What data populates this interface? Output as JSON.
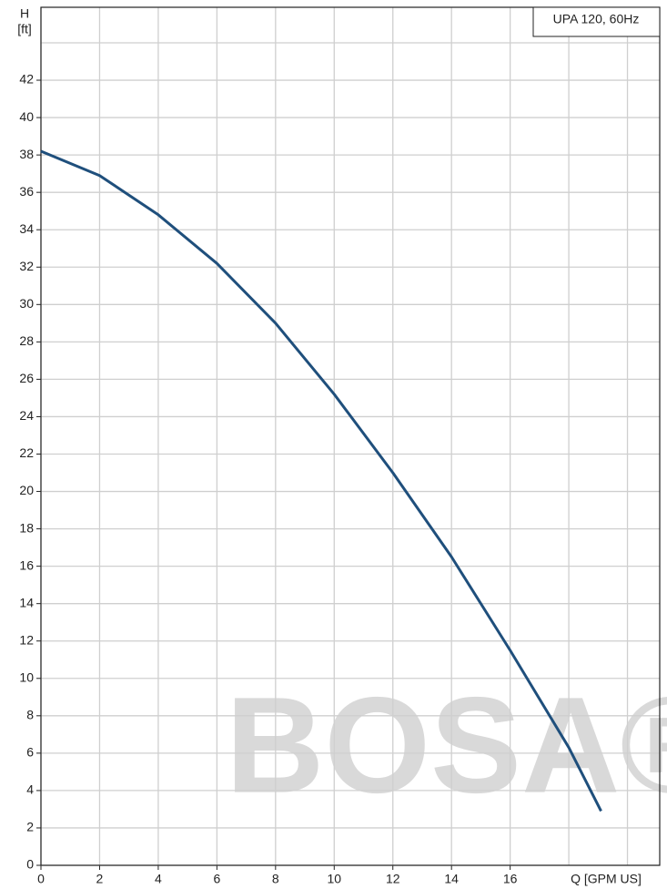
{
  "chart_data": {
    "type": "line",
    "legend_label": "UPA 120, 60Hz",
    "ylabel": [
      "H",
      "[ft]"
    ],
    "xlabel": "Q [GPM US]",
    "watermark": "BOSA®",
    "x": [
      0,
      2,
      4,
      6,
      8,
      10,
      12,
      14,
      16,
      18,
      19.1
    ],
    "series": [
      {
        "color": "#1f4f7c",
        "values": [
          38.2,
          36.9,
          34.8,
          32.2,
          29.0,
          25.2,
          21.0,
          16.5,
          11.5,
          6.3,
          2.9
        ]
      }
    ],
    "xlim": [
      0,
      21.1
    ],
    "ylim": [
      0,
      45.9
    ],
    "xticks": [
      0,
      2,
      4,
      6,
      8,
      10,
      12,
      14,
      16
    ],
    "xgrid": [
      18,
      20
    ],
    "yticks": [
      0,
      2,
      4,
      6,
      8,
      10,
      12,
      14,
      16,
      18,
      20,
      22,
      24,
      26,
      28,
      30,
      32,
      34,
      36,
      38,
      40,
      42
    ],
    "ygrid": [
      44
    ],
    "grid": true
  }
}
